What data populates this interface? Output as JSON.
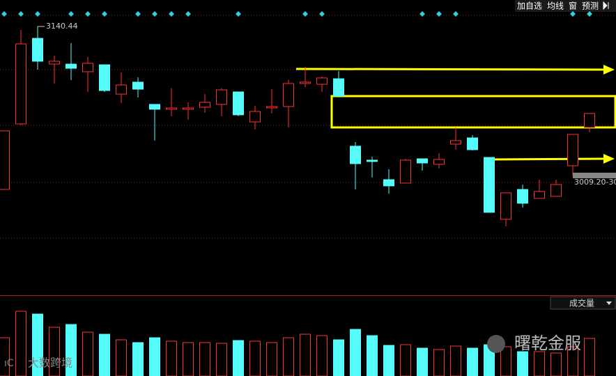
{
  "toolbar": [
    "加自选",
    "均线",
    "窗",
    "预测"
  ],
  "watermarks": [
    "曙乾金服",
    "大数跨境"
  ],
  "chart_data": [
    {
      "type": "candlestick",
      "up_color": "#ff3232",
      "down_color": "#54fcfc",
      "ylim": [
        2903.7,
        3163.75
      ],
      "open": [
        2996.9,
        3054.6,
        3130.0,
        3107.3,
        3107.3,
        3100.6,
        3106.7,
        3080.9,
        3091.4,
        3071.8,
        3067.5,
        3067.5,
        3069.3,
        3071.8,
        3082.8,
        3056.4,
        3068.7,
        3069.9,
        3090.2,
        3089.5,
        3094.4,
        3035.0,
        3022.7,
        3005.5,
        3002.5,
        3023.9,
        3019.0,
        3036.8,
        3042.3,
        3025.1,
        2970.6,
        2996.9,
        2989.0,
        2990.8,
        3017.8,
        3051.5
      ],
      "high": [
        3048.5,
        3137.4,
        3140.44,
        3114.7,
        3125.7,
        3113.5,
        3106.7,
        3100.0,
        3095.7,
        3071.8,
        3085.9,
        3073.6,
        3080.9,
        3085.9,
        3082.8,
        3070.5,
        3085.2,
        3093.2,
        3104.9,
        3096.3,
        3101.2,
        3038.6,
        3025.8,
        3014.7,
        3023.9,
        3023.9,
        3028.8,
        3051.5,
        3044.8,
        3025.1,
        2993.9,
        3001.2,
        3005.5,
        3005.5,
        3045.4,
        3063.8
      ],
      "low": [
        2996.9,
        3053.4,
        3102.4,
        3090.2,
        3093.2,
        3082.8,
        3082.8,
        3073.0,
        3077.9,
        3039.9,
        3061.3,
        3058.3,
        3064.4,
        3061.3,
        3061.3,
        3049.7,
        3063.8,
        3051.5,
        3087.1,
        3082.8,
        3077.9,
        2996.9,
        3007.4,
        2993.2,
        3002.5,
        3013.5,
        3015.3,
        3031.9,
        3031.3,
        2976.7,
        2964.4,
        2981.0,
        2989.0,
        2990.8,
        3009.2,
        3047.2
      ],
      "close": [
        3048.5,
        3125.1,
        3109.8,
        3109.8,
        3103.6,
        3108.0,
        3084.0,
        3088.9,
        3085.2,
        3067.5,
        3068.7,
        3068.7,
        3073.6,
        3084.6,
        3062.6,
        3065.6,
        3069.9,
        3090.2,
        3091.4,
        3095.1,
        3079.1,
        3019.6,
        3021.5,
        3000.0,
        3022.7,
        3020.2,
        3023.3,
        3039.9,
        3031.9,
        2976.7,
        2993.9,
        2984.7,
        2995.1,
        3001.2,
        3045.4,
        3063.8
      ],
      "annotations": [
        {
          "text": "3009.20-30",
          "value": 3009.2
        }
      ]
    },
    {
      "type": "bar",
      "title": "成交量",
      "ylim": [
        0,
        115
      ],
      "values": [
        55,
        93,
        89,
        70,
        74,
        63,
        60,
        52,
        48,
        55,
        50,
        48,
        48,
        47,
        51,
        50,
        48,
        55,
        60,
        58,
        52,
        67,
        58,
        44,
        45,
        40,
        38,
        43,
        40,
        45,
        42,
        35,
        35,
        33,
        42,
        54
      ]
    }
  ]
}
